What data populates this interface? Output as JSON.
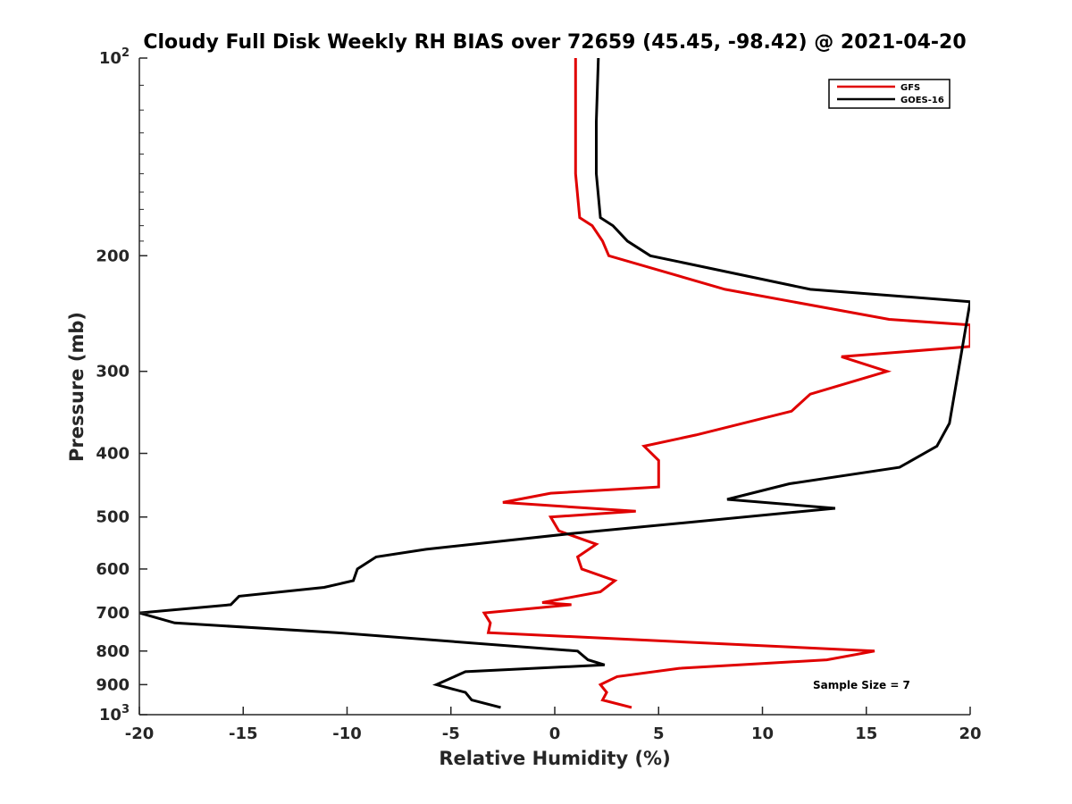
{
  "chart_data": {
    "type": "line",
    "title": "Cloudy Full Disk Weekly RH BIAS over 72659 (45.45, -98.42) @ 2021-04-20",
    "xlabel": "Relative Humidity (%)",
    "ylabel": "Pressure (mb)",
    "xlim": [
      -20,
      20
    ],
    "ylim": [
      1000,
      100
    ],
    "yscale": "log",
    "x_ticks": [
      "-20",
      "-15",
      "-10",
      "-5",
      "0",
      "5",
      "10",
      "15",
      "20"
    ],
    "y_ticks": [
      {
        "value": 100,
        "base": "10",
        "exp": "2"
      },
      {
        "value": 200,
        "label": "200"
      },
      {
        "value": 300,
        "label": "300"
      },
      {
        "value": 400,
        "label": "400"
      },
      {
        "value": 500,
        "label": "500"
      },
      {
        "value": 600,
        "label": "600"
      },
      {
        "value": 700,
        "label": "700"
      },
      {
        "value": 800,
        "label": "800"
      },
      {
        "value": 900,
        "label": "900"
      },
      {
        "value": 1000,
        "base": "10",
        "exp": "3"
      }
    ],
    "grid": false,
    "legend_position": "top-right",
    "annotation": "Sample Size = 7",
    "series": [
      {
        "name": "GFS",
        "color": "#e00000",
        "points": [
          [
            1.0,
            100
          ],
          [
            1.0,
            125
          ],
          [
            1.0,
            150
          ],
          [
            1.2,
            175
          ],
          [
            1.8,
            180
          ],
          [
            2.3,
            190
          ],
          [
            2.6,
            200
          ],
          [
            8.2,
            225
          ],
          [
            16.1,
            250
          ],
          [
            20.0,
            255
          ],
          [
            20.0,
            275
          ],
          [
            13.8,
            285
          ],
          [
            16.0,
            300
          ],
          [
            12.3,
            325
          ],
          [
            11.4,
            345
          ],
          [
            6.8,
            375
          ],
          [
            4.3,
            390
          ],
          [
            5.0,
            410
          ],
          [
            5.0,
            450
          ],
          [
            -0.2,
            460
          ],
          [
            -2.5,
            475
          ],
          [
            3.9,
            490
          ],
          [
            -0.2,
            500
          ],
          [
            0.2,
            525
          ],
          [
            2.0,
            550
          ],
          [
            1.1,
            575
          ],
          [
            1.3,
            600
          ],
          [
            2.9,
            625
          ],
          [
            2.2,
            650
          ],
          [
            -0.6,
            675
          ],
          [
            0.8,
            680
          ],
          [
            -3.4,
            700
          ],
          [
            -3.1,
            725
          ],
          [
            -3.2,
            750
          ],
          [
            15.4,
            800
          ],
          [
            13.1,
            825
          ],
          [
            6.0,
            850
          ],
          [
            3.0,
            875
          ],
          [
            2.2,
            900
          ],
          [
            2.5,
            925
          ],
          [
            2.3,
            950
          ],
          [
            3.7,
            975
          ]
        ]
      },
      {
        "name": "GOES-16",
        "color": "#000000",
        "points": [
          [
            2.1,
            100
          ],
          [
            2.0,
            125
          ],
          [
            2.0,
            150
          ],
          [
            2.2,
            175
          ],
          [
            2.8,
            180
          ],
          [
            3.5,
            190
          ],
          [
            4.6,
            200
          ],
          [
            12.3,
            225
          ],
          [
            20.0,
            235
          ],
          [
            19.0,
            360
          ],
          [
            18.4,
            390
          ],
          [
            16.6,
            420
          ],
          [
            11.3,
            445
          ],
          [
            8.3,
            470
          ],
          [
            13.5,
            485
          ],
          [
            0.8,
            530
          ],
          [
            -6.2,
            560
          ],
          [
            -8.6,
            575
          ],
          [
            -9.5,
            600
          ],
          [
            -9.7,
            625
          ],
          [
            -11.1,
            640
          ],
          [
            -15.2,
            660
          ],
          [
            -15.6,
            680
          ],
          [
            -20.0,
            700
          ],
          [
            -18.3,
            725
          ],
          [
            -10.5,
            750
          ],
          [
            1.1,
            800
          ],
          [
            1.6,
            825
          ],
          [
            2.4,
            840
          ],
          [
            -4.3,
            860
          ],
          [
            -5.7,
            900
          ],
          [
            -4.3,
            925
          ],
          [
            -4.0,
            950
          ],
          [
            -2.6,
            975
          ]
        ]
      }
    ]
  }
}
